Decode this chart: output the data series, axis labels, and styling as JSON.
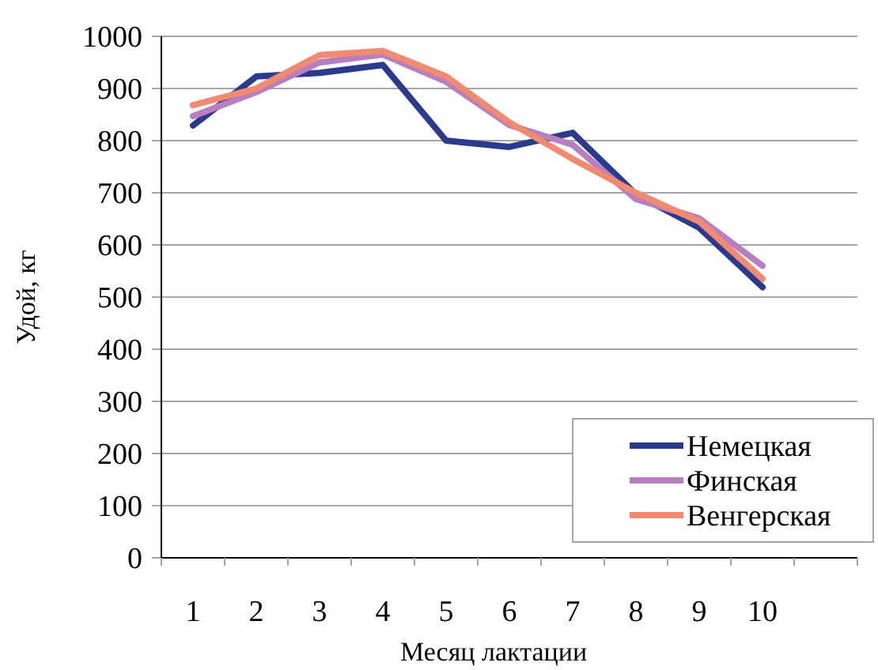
{
  "chart_data": {
    "type": "line",
    "xlabel": "Месяц лактации",
    "ylabel": "Удой, кг",
    "categories": [
      "1",
      "2",
      "3",
      "4",
      "5",
      "6",
      "7",
      "8",
      "9",
      "10",
      null
    ],
    "series": [
      {
        "name": "Немецкая",
        "color": "#2b3a8c",
        "values": [
          829,
          923,
          930,
          945,
          800,
          788,
          815,
          697,
          633,
          519,
          null
        ]
      },
      {
        "name": "Финская",
        "color": "#b77fc0",
        "values": [
          847,
          893,
          950,
          965,
          913,
          830,
          792,
          688,
          651,
          560,
          null
        ]
      },
      {
        "name": "Венгерская",
        "color": "#f08a70",
        "values": [
          868,
          900,
          964,
          972,
          923,
          835,
          765,
          700,
          645,
          535,
          null
        ]
      }
    ],
    "ylim": [
      0,
      1000
    ],
    "yticks": [
      0,
      100,
      200,
      300,
      400,
      500,
      600,
      700,
      800,
      900,
      1000
    ],
    "grid": "y",
    "legend": "bottom right",
    "line_style": "solid",
    "marker": "none"
  }
}
